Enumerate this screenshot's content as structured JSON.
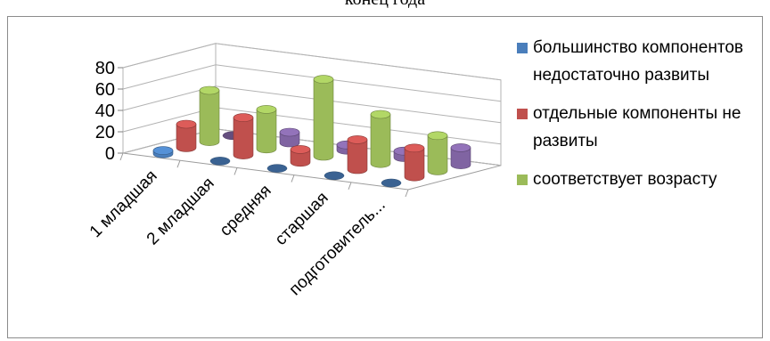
{
  "page": {
    "top_title": "конец года"
  },
  "chart_data": {
    "type": "bar",
    "categories": [
      "1 младшая",
      "2 младшая",
      "средняя",
      "старшая",
      "подготовитель..."
    ],
    "y_ticks": [
      "0",
      "20",
      "40",
      "60",
      "80"
    ],
    "ylim": [
      0,
      80
    ],
    "grid": true,
    "legend_position": "right",
    "series": [
      {
        "name": "большинство компонентов недостаточно развиты",
        "color": "#4a7ebb",
        "values": [
          3,
          0,
          0,
          0,
          0
        ]
      },
      {
        "name": "отдельные компоненты не развиты",
        "color": "#c0504d",
        "values": [
          22,
          35,
          12,
          28,
          27
        ]
      },
      {
        "name": "соответствует возрасту",
        "color": "#9bbb59",
        "values": [
          48,
          37,
          72,
          46,
          33
        ]
      },
      {
        "name": "",
        "color": "#8064a2",
        "values": [
          0,
          10,
          5,
          6,
          16
        ]
      }
    ]
  }
}
